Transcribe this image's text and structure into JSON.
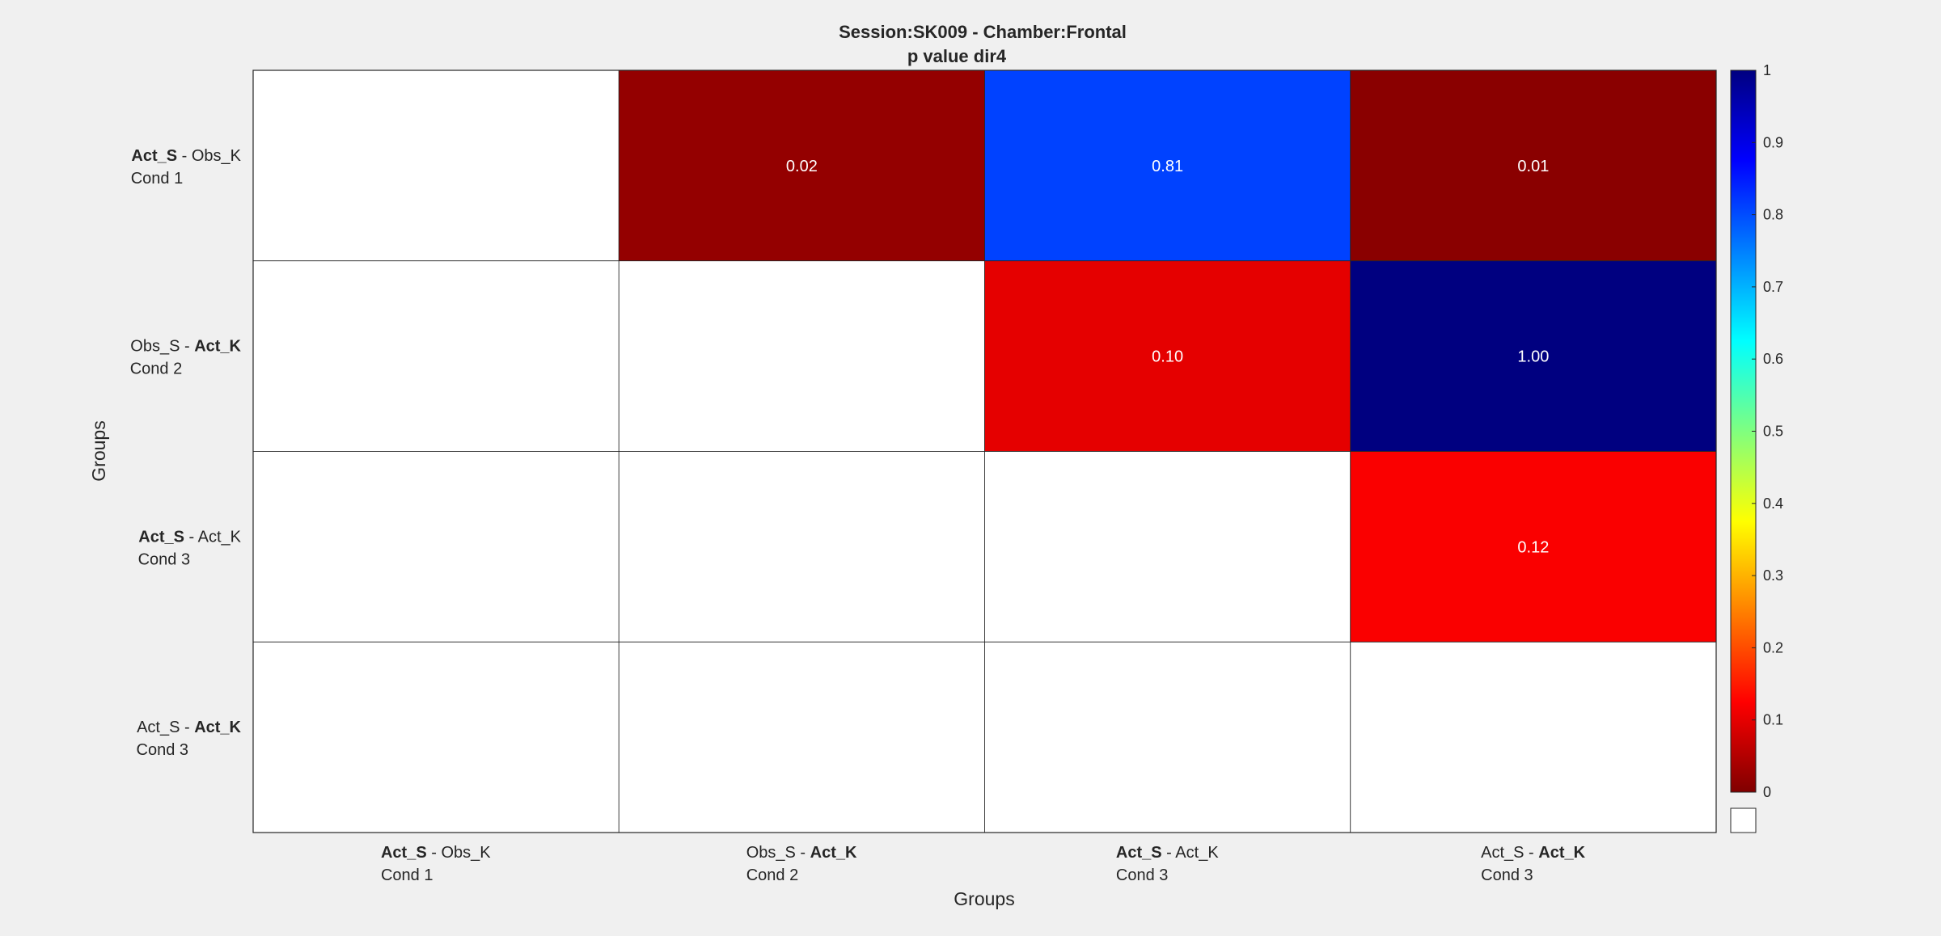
{
  "chart_data": {
    "type": "heatmap",
    "title": "Session:SK009 - Chamber:Frontal",
    "subtitle": "p value dir4",
    "xlabel": "Groups",
    "ylabel": "Groups",
    "groups": [
      {
        "line1": [
          {
            "text": "Act_S",
            "bold": true
          },
          {
            "text": "  - Obs_K",
            "bold": false
          }
        ],
        "line2": "Cond 1"
      },
      {
        "line1": [
          {
            "text": "Obs_S - ",
            "bold": false
          },
          {
            "text": " Act_K",
            "bold": true
          }
        ],
        "line2": " Cond 2"
      },
      {
        "line1": [
          {
            "text": "Act_S",
            "bold": true
          },
          {
            "text": "  - Act_K",
            "bold": false
          }
        ],
        "line2": "Cond 3"
      },
      {
        "line1": [
          {
            "text": "Act_S - ",
            "bold": false
          },
          {
            "text": " Act_K",
            "bold": true
          }
        ],
        "line2": " Cond 3"
      }
    ],
    "values": [
      [
        null,
        0.02,
        0.81,
        0.01
      ],
      [
        null,
        null,
        0.1,
        1.0
      ],
      [
        null,
        null,
        null,
        0.12
      ],
      [
        null,
        null,
        null,
        null
      ]
    ],
    "value_labels": [
      [
        "",
        "0.02",
        "0.81",
        "0.01"
      ],
      [
        "",
        "",
        "0.10",
        "1.00"
      ],
      [
        "",
        "",
        "",
        "0.12"
      ],
      [
        "",
        "",
        "",
        ""
      ]
    ],
    "colorbar": {
      "colormap": "jet (reversed)",
      "range": [
        0,
        1
      ],
      "ticks": [
        "0",
        "0.1",
        "0.2",
        "0.3",
        "0.4",
        "0.5",
        "0.6",
        "0.7",
        "0.8",
        "0.9",
        "1"
      ],
      "nan_color": "#ffffff"
    },
    "grid": true,
    "legend": "colorbar right"
  }
}
